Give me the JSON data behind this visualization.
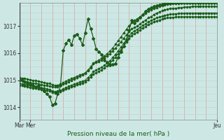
{
  "background_color": "#cde8e4",
  "plot_bg_color": "#cde8e4",
  "line_color": "#1a5c1a",
  "marker": "D",
  "marker_size": 2.0,
  "linewidth": 0.9,
  "title": "Pression niveau de la mer( hPa )",
  "xlabel_left1": "Mar",
  "xlabel_left2": "Mer",
  "xlabel_right": "Jeu",
  "yticks": [
    1014,
    1015,
    1016,
    1017
  ],
  "ylim": [
    1013.55,
    1017.85
  ],
  "xlim": [
    0,
    72
  ],
  "grid_color_red": "#d8a0a0",
  "grid_color_h": "#b8d4d0",
  "vline_positions": [
    0,
    4,
    8,
    12,
    16,
    20,
    24,
    28,
    32,
    36,
    40,
    44,
    48,
    52,
    56,
    60,
    64,
    68,
    72
  ],
  "n_points": 73,
  "wavy_line": [
    1015.05,
    1015.0,
    1014.95,
    1014.9,
    1014.85,
    1014.8,
    1014.75,
    1014.8,
    1014.7,
    1014.6,
    1014.5,
    1014.4,
    1014.1,
    1014.15,
    1014.5,
    1014.8,
    1016.1,
    1016.35,
    1016.5,
    1016.3,
    1016.65,
    1016.7,
    1016.55,
    1016.3,
    1016.75,
    1017.25,
    1016.9,
    1016.55,
    1016.15,
    1016.05,
    1015.95,
    1015.75,
    1015.65,
    1015.55,
    1015.58,
    1015.62,
    1015.85,
    1016.05,
    1016.25,
    1016.5,
    1016.85,
    1017.2,
    1017.1,
    1017.2,
    1017.3,
    1017.42,
    1017.55,
    1017.62,
    1017.68,
    1017.72,
    1017.75,
    1017.78,
    1017.8,
    1017.82,
    1017.83,
    1017.84,
    1017.85,
    1017.85,
    1017.85,
    1017.85,
    1017.85,
    1017.85,
    1017.85,
    1017.85,
    1017.85,
    1017.85,
    1017.85,
    1017.85,
    1017.85,
    1017.85,
    1017.85,
    1017.85,
    1017.85
  ],
  "line2": [
    1015.0,
    1014.98,
    1014.96,
    1014.94,
    1014.92,
    1014.9,
    1014.88,
    1014.86,
    1014.84,
    1014.82,
    1014.8,
    1014.78,
    1014.76,
    1014.75,
    1014.77,
    1014.8,
    1014.85,
    1014.9,
    1014.95,
    1015.0,
    1015.05,
    1015.1,
    1015.15,
    1015.2,
    1015.25,
    1015.35,
    1015.45,
    1015.6,
    1015.65,
    1015.7,
    1015.75,
    1015.82,
    1015.9,
    1015.98,
    1016.08,
    1016.18,
    1016.3,
    1016.42,
    1016.55,
    1016.68,
    1016.8,
    1016.9,
    1016.95,
    1017.0,
    1017.08,
    1017.15,
    1017.22,
    1017.3,
    1017.35,
    1017.42,
    1017.48,
    1017.52,
    1017.56,
    1017.6,
    1017.62,
    1017.64,
    1017.65,
    1017.66,
    1017.67,
    1017.68,
    1017.69,
    1017.7,
    1017.71,
    1017.72,
    1017.72,
    1017.72,
    1017.72,
    1017.72,
    1017.72,
    1017.72,
    1017.72,
    1017.72,
    1017.72
  ],
  "line3": [
    1014.88,
    1014.86,
    1014.84,
    1014.82,
    1014.8,
    1014.78,
    1014.76,
    1014.74,
    1014.72,
    1014.7,
    1014.68,
    1014.66,
    1014.6,
    1014.58,
    1014.6,
    1014.63,
    1014.68,
    1014.73,
    1014.78,
    1014.82,
    1014.86,
    1014.9,
    1014.93,
    1014.97,
    1015.0,
    1015.1,
    1015.2,
    1015.32,
    1015.38,
    1015.43,
    1015.48,
    1015.55,
    1015.63,
    1015.72,
    1015.83,
    1015.95,
    1016.08,
    1016.22,
    1016.36,
    1016.5,
    1016.63,
    1016.75,
    1016.82,
    1016.88,
    1016.95,
    1017.02,
    1017.08,
    1017.15,
    1017.2,
    1017.25,
    1017.3,
    1017.33,
    1017.36,
    1017.39,
    1017.41,
    1017.43,
    1017.44,
    1017.45,
    1017.46,
    1017.47,
    1017.47,
    1017.48,
    1017.48,
    1017.48,
    1017.48,
    1017.48,
    1017.48,
    1017.48,
    1017.48,
    1017.48,
    1017.48,
    1017.48,
    1017.48
  ],
  "line4": [
    1014.82,
    1014.8,
    1014.78,
    1014.76,
    1014.74,
    1014.72,
    1014.7,
    1014.68,
    1014.66,
    1014.64,
    1014.62,
    1014.6,
    1014.55,
    1014.53,
    1014.55,
    1014.58,
    1014.62,
    1014.67,
    1014.72,
    1014.75,
    1014.79,
    1014.83,
    1014.86,
    1014.9,
    1014.93,
    1015.02,
    1015.12,
    1015.23,
    1015.28,
    1015.33,
    1015.38,
    1015.45,
    1015.53,
    1015.62,
    1015.73,
    1015.85,
    1015.98,
    1016.12,
    1016.26,
    1016.4,
    1016.53,
    1016.65,
    1016.72,
    1016.78,
    1016.85,
    1016.92,
    1016.98,
    1017.05,
    1017.1,
    1017.15,
    1017.19,
    1017.22,
    1017.25,
    1017.28,
    1017.3,
    1017.31,
    1017.32,
    1017.33,
    1017.34,
    1017.34,
    1017.34,
    1017.34,
    1017.34,
    1017.34,
    1017.34,
    1017.34,
    1017.34,
    1017.34,
    1017.34,
    1017.34,
    1017.34,
    1017.34,
    1017.34
  ],
  "line5": [
    1015.1,
    1015.08,
    1015.06,
    1015.04,
    1015.02,
    1015.0,
    1014.98,
    1014.96,
    1014.94,
    1014.92,
    1014.9,
    1014.88,
    1014.83,
    1014.8,
    1014.82,
    1014.86,
    1014.91,
    1014.97,
    1015.02,
    1015.06,
    1015.1,
    1015.15,
    1015.19,
    1015.23,
    1015.27,
    1015.38,
    1015.5,
    1015.63,
    1015.69,
    1015.75,
    1015.81,
    1015.89,
    1015.98,
    1016.07,
    1016.19,
    1016.32,
    1016.46,
    1016.6,
    1016.74,
    1016.88,
    1017.01,
    1017.13,
    1017.2,
    1017.27,
    1017.34,
    1017.41,
    1017.47,
    1017.54,
    1017.59,
    1017.64,
    1017.68,
    1017.72,
    1017.75,
    1017.78,
    1017.8,
    1017.82,
    1017.83,
    1017.84,
    1017.84,
    1017.85,
    1017.85,
    1017.85,
    1017.85,
    1017.85,
    1017.85,
    1017.85,
    1017.85,
    1017.85,
    1017.85,
    1017.85,
    1017.85,
    1017.85,
    1017.85
  ]
}
